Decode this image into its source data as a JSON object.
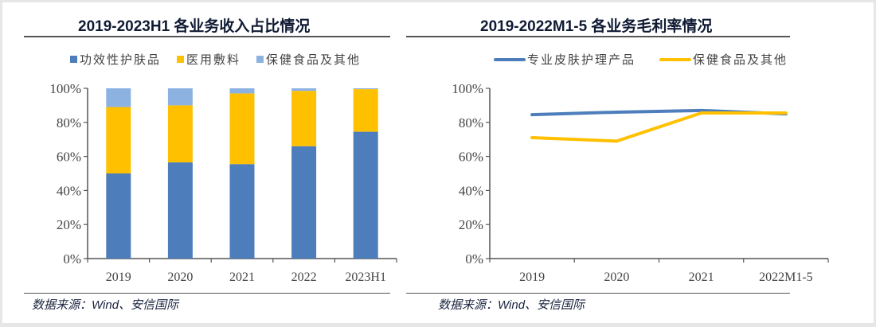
{
  "colors": {
    "blue": "#4d7ebb",
    "yellow": "#ffc000",
    "lightblue": "#8cb2e2",
    "axis": "#555555"
  },
  "source_left": "数据来源：Wind、安信国际",
  "source_right": "数据来源：Wind、安信国际",
  "chart_data": [
    {
      "type": "bar",
      "stacked": true,
      "title": "2019-2023H1 各业务收入占比情况",
      "categories": [
        "2019",
        "2020",
        "2021",
        "2022",
        "2023H1"
      ],
      "series": [
        {
          "name": "功效性护肤品",
          "color": "#4d7ebb",
          "values": [
            50,
            56.5,
            55.5,
            66,
            74.5
          ]
        },
        {
          "name": "医用敷料",
          "color": "#ffc000",
          "values": [
            39,
            33.5,
            41.5,
            32.5,
            25
          ]
        },
        {
          "name": "保健食品及其他",
          "color": "#8cb2e2",
          "values": [
            11,
            10,
            3,
            1.5,
            0.5
          ]
        }
      ],
      "ylim": [
        0,
        100
      ],
      "yticks": [
        "0%",
        "20%",
        "40%",
        "60%",
        "80%",
        "100%"
      ],
      "legend": "top",
      "grid": false
    },
    {
      "type": "line",
      "title": "2019-2022M1-5 各业务毛利率情况",
      "categories": [
        "2019",
        "2020",
        "2021",
        "2022M1-5"
      ],
      "series": [
        {
          "name": "专业皮肤护理产品",
          "color": "#4d7ebb",
          "values": [
            84.5,
            86,
            87,
            85
          ]
        },
        {
          "name": "保健食品及其他",
          "color": "#ffc000",
          "values": [
            71,
            69,
            85.5,
            85.5
          ]
        }
      ],
      "ylim": [
        0,
        100
      ],
      "yticks": [
        "0%",
        "20%",
        "40%",
        "60%",
        "80%",
        "100%"
      ],
      "legend": "top",
      "grid": false
    }
  ]
}
